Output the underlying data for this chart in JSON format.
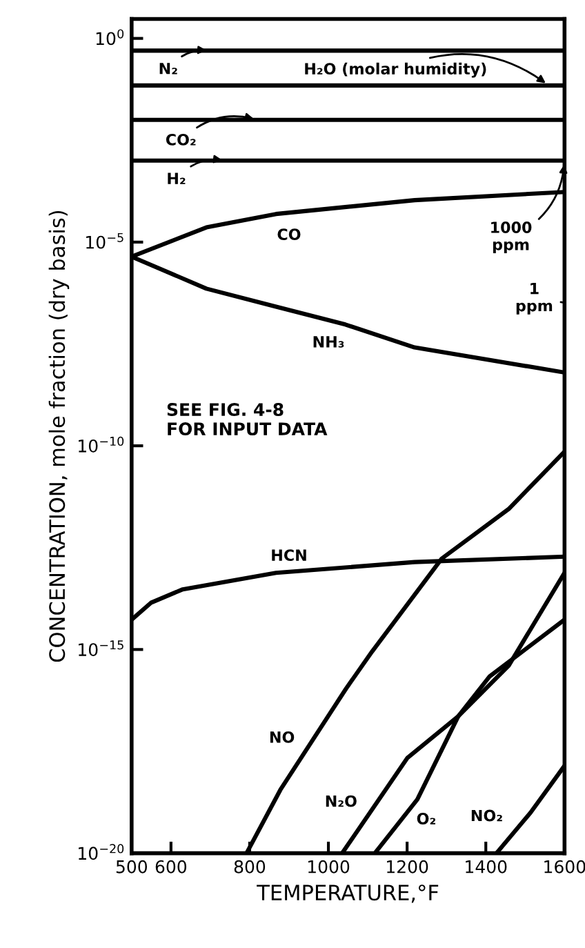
{
  "chart_data": {
    "type": "line",
    "xlabel": "TEMPERATURE,°F",
    "ylabel": "CONCENTRATION, mole fraction (dry basis)",
    "log": "y",
    "grid": false,
    "legend": false,
    "marker": "none",
    "line_style": "solid",
    "xlim": [
      500,
      1600
    ],
    "xticks": [
      500,
      600,
      800,
      1000,
      1200,
      1400,
      1600
    ],
    "ylim": [
      1e-20,
      3
    ],
    "yticks": [
      {
        "value": 1,
        "label": "10$^{0}$"
      },
      {
        "value": 1e-05,
        "label": "10$^{−5}$"
      },
      {
        "value": 1e-10,
        "label": "10$^{−10}$"
      },
      {
        "value": 1e-15,
        "label": "10$^{−15}$"
      },
      {
        "value": 1e-20,
        "label": "10$^{−20}$"
      }
    ],
    "series": [
      {
        "name": "N₂",
        "color": "#000000",
        "x": [
          500,
          1600
        ],
        "values": [
          0.5,
          0.5
        ]
      },
      {
        "name": "H₂O (molar humidity)",
        "color": "#000000",
        "x": [
          500,
          1600
        ],
        "values": [
          0.07,
          0.07
        ]
      },
      {
        "name": "CO₂",
        "color": "#000000",
        "x": [
          500,
          1600
        ],
        "values": [
          0.01,
          0.01
        ]
      },
      {
        "name": "H₂",
        "color": "#000000",
        "x": [
          500,
          1600
        ],
        "values": [
          0.001,
          0.001
        ]
      },
      {
        "name": "CO",
        "color": "#000000",
        "x": [
          500,
          690,
          867,
          1219,
          1600
        ],
        "values": [
          4.4e-06,
          2.3e-05,
          4.9e-05,
          0.000107,
          0.00017
        ]
      },
      {
        "name": "NH₃",
        "color": "#000000",
        "x": [
          500,
          690,
          867,
          1043,
          1219,
          1600
        ],
        "values": [
          4.4e-06,
          7.2e-07,
          2.6e-07,
          9.5e-08,
          2.6e-08,
          6.3e-09
        ]
      },
      {
        "name": "HCN",
        "color": "#000000",
        "x": [
          500,
          549,
          630,
          867,
          1219,
          1600
        ],
        "values": [
          5.4e-15,
          1.4e-14,
          3e-14,
          7.6e-14,
          1.4e-13,
          1.9e-13
        ]
      },
      {
        "name": "NO",
        "color": "#000000",
        "x": [
          792,
          878,
          1045,
          1111,
          1288,
          1458,
          1600
        ],
        "values": [
          1e-20,
          3.6e-19,
          1.1e-16,
          8.9e-16,
          1.7e-13,
          2.8e-12,
          7.2e-11
        ]
      },
      {
        "name": "N₂O",
        "color": "#000000",
        "x": [
          1035,
          1201,
          1330,
          1410,
          1600
        ],
        "values": [
          1e-20,
          2.2e-18,
          2.3e-17,
          2.2e-16,
          5.4e-15
        ]
      },
      {
        "name": "O₂",
        "color": "#000000",
        "x": [
          1118,
          1226,
          1330,
          1458,
          1600
        ],
        "values": [
          1e-20,
          2.1e-19,
          2.3e-17,
          4e-16,
          7.6e-14
        ]
      },
      {
        "name": "NO₂",
        "color": "#000000",
        "x": [
          1427,
          1514,
          1600
        ],
        "values": [
          1e-20,
          1e-19,
          1.4e-18
        ]
      }
    ],
    "annotations": [
      "SEE FIG. 4-8\nFOR INPUT DATA",
      {
        "text": "1000\nppm",
        "x": 1600,
        "y": 0.001
      },
      "1\nppm"
    ]
  }
}
